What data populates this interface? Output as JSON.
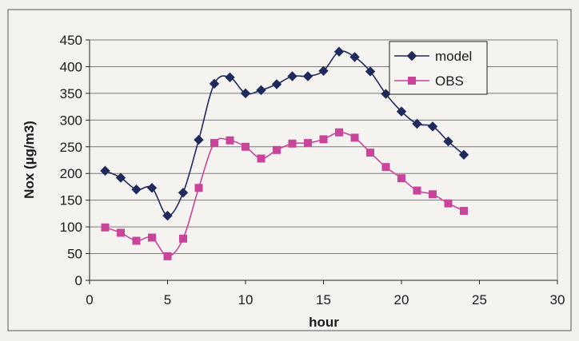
{
  "chart_data": {
    "type": "line",
    "xlabel": "hour",
    "ylabel": "Nox (µg/m3)",
    "xlim": [
      0,
      30
    ],
    "ylim": [
      0,
      450
    ],
    "x_ticks": [
      0,
      5,
      10,
      15,
      20,
      25,
      30
    ],
    "y_ticks": [
      0,
      50,
      100,
      150,
      200,
      250,
      300,
      350,
      400,
      450
    ],
    "grid": "horizontal",
    "legend_position": "top-right",
    "series": [
      {
        "name": "model",
        "color": "#1f2a5c",
        "marker": "diamond",
        "x": [
          1,
          2,
          3,
          4,
          5,
          6,
          7,
          8,
          9,
          10,
          11,
          12,
          13,
          14,
          15,
          16,
          17,
          18,
          19,
          20,
          21,
          22,
          23,
          24
        ],
        "y": [
          205,
          192,
          170,
          173,
          121,
          164,
          263,
          368,
          380,
          350,
          356,
          367,
          382,
          382,
          392,
          428,
          418,
          391,
          349,
          316,
          293,
          288,
          260,
          235
        ]
      },
      {
        "name": "OBS",
        "color": "#c9459a",
        "marker": "square",
        "x": [
          1,
          2,
          3,
          4,
          5,
          6,
          7,
          8,
          9,
          10,
          11,
          12,
          13,
          14,
          15,
          16,
          17,
          18,
          19,
          20,
          21,
          22,
          23,
          24
        ],
        "y": [
          99,
          89,
          74,
          80,
          45,
          78,
          173,
          257,
          262,
          250,
          228,
          244,
          256,
          257,
          264,
          277,
          267,
          239,
          212,
          191,
          168,
          161,
          144,
          130
        ]
      }
    ]
  }
}
